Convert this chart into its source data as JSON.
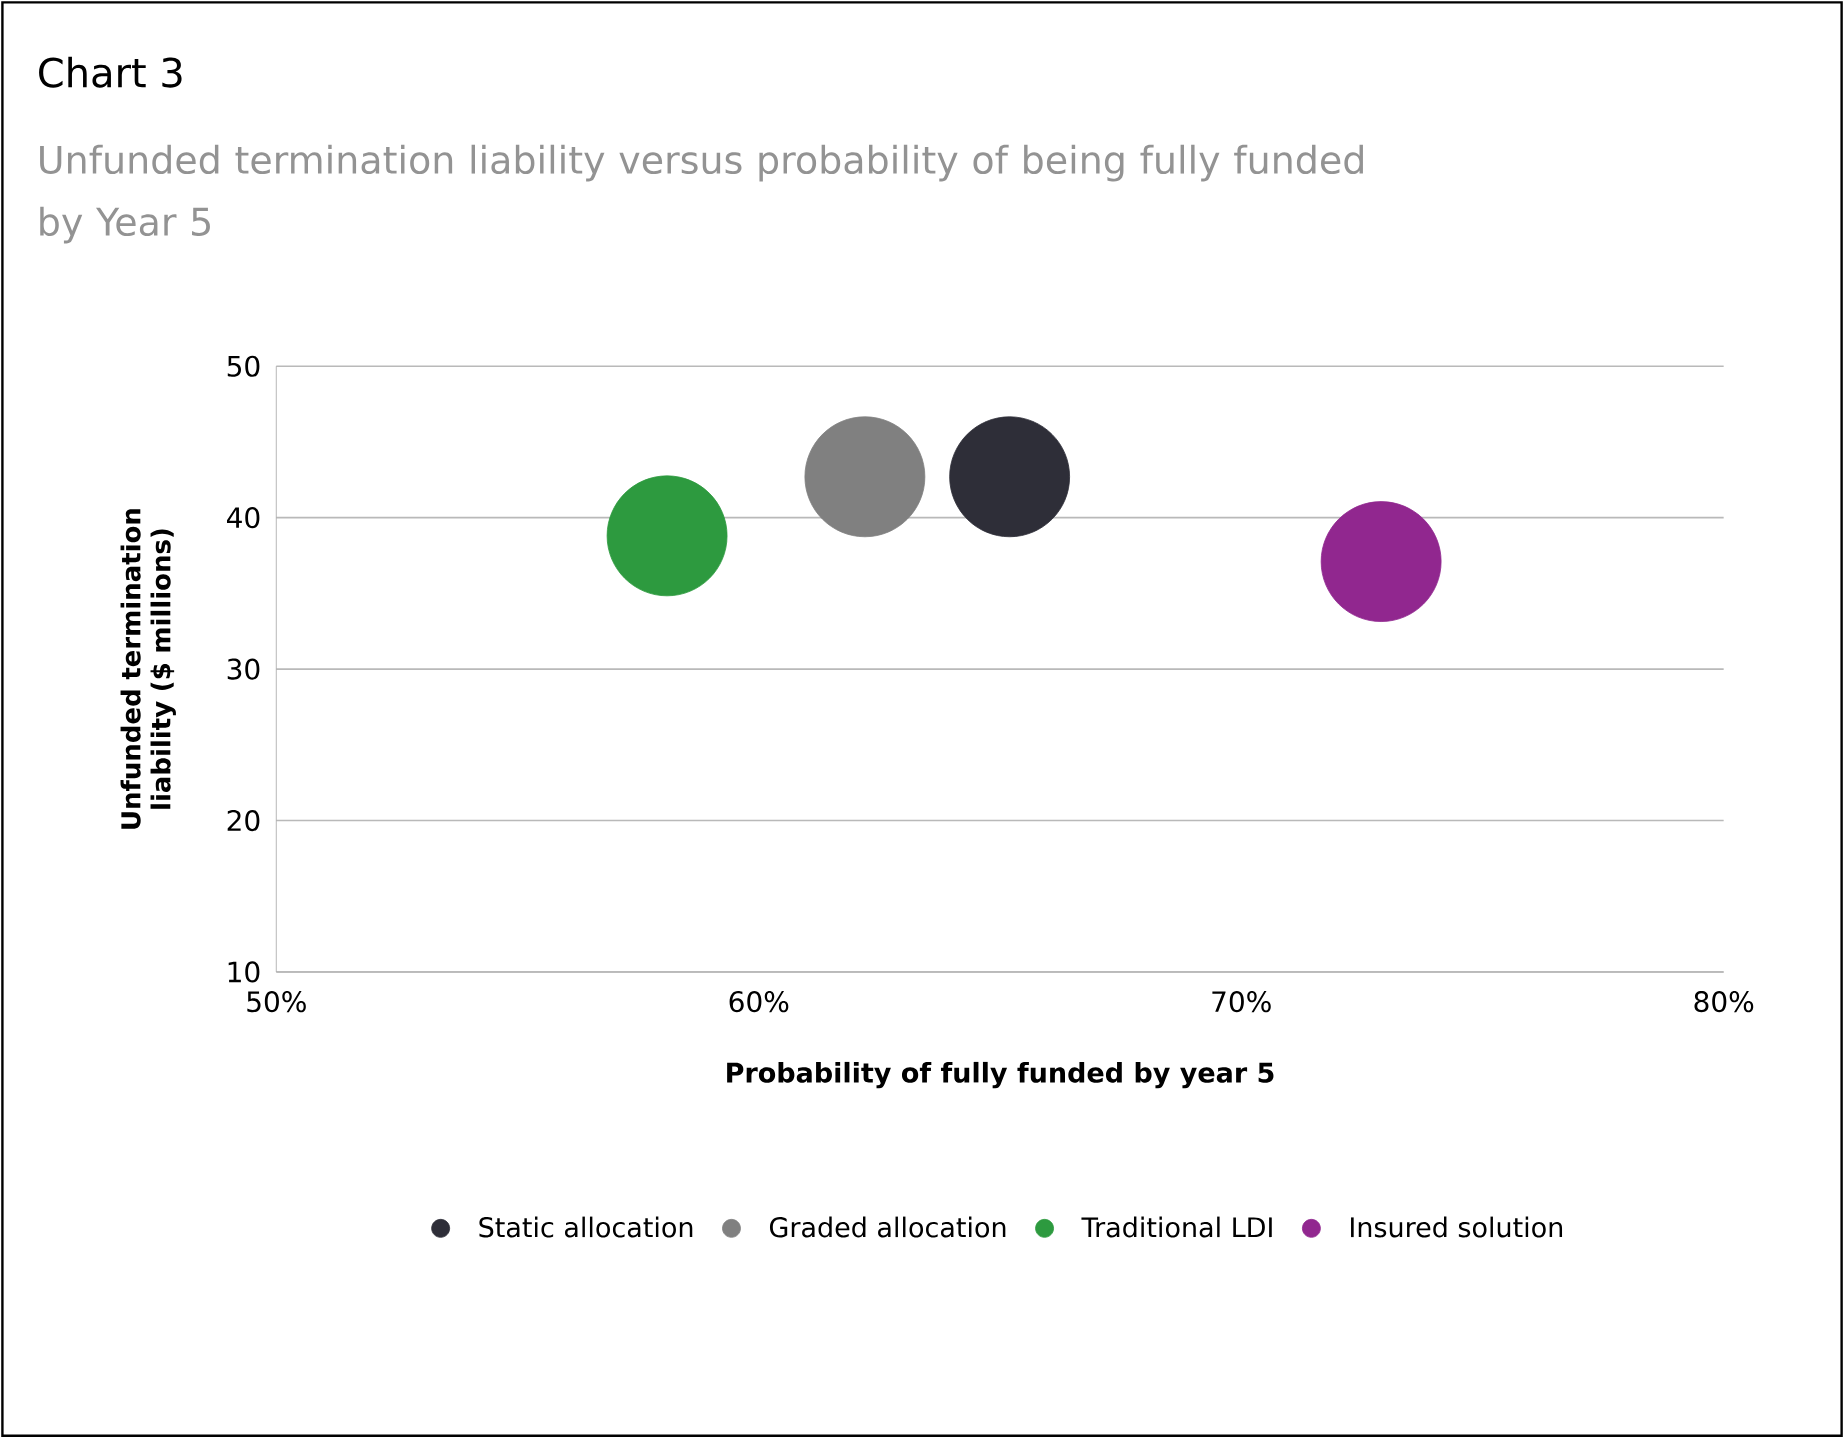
{
  "chart_data": {
    "type": "scatter",
    "title": "Chart 3",
    "subtitle": "Unfunded termination liability versus probability of being fully funded by Year 5",
    "xlabel": "Probability of fully funded by year 5",
    "ylabel": "Unfunded termination liability ($ millions)",
    "series": [
      {
        "name": "Static allocation",
        "color": "#2e2e38",
        "x": [
          65.2
        ],
        "values": [
          42.7
        ]
      },
      {
        "name": "Graded allocation",
        "color": "#808080",
        "x": [
          62.2
        ],
        "values": [
          42.7
        ]
      },
      {
        "name": "Traditional LDI",
        "color": "#2d9a3f",
        "x": [
          58.1
        ],
        "values": [
          38.8
        ]
      },
      {
        "name": "Insured solution",
        "color": "#91278f",
        "x": [
          72.9
        ],
        "values": [
          37.1
        ]
      }
    ],
    "xlim": [
      50,
      80
    ],
    "xticks": [
      {
        "value": 50,
        "label": "50%"
      },
      {
        "value": 60,
        "label": "60%"
      },
      {
        "value": 70,
        "label": "70%"
      },
      {
        "value": 80,
        "label": "80%"
      }
    ],
    "ylim": [
      10,
      50
    ],
    "yticks": [
      10,
      20,
      30,
      40,
      50
    ],
    "grid": "y",
    "legend": "bottom",
    "marker": "circle"
  }
}
